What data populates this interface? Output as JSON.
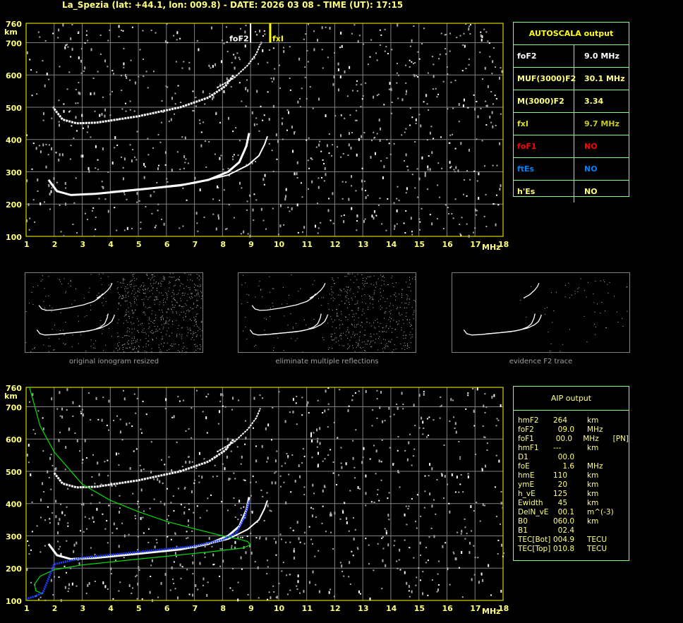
{
  "header": {
    "title": "La_Spezia (lat: +44.1, lon: 009.8) - DATE: 2026 03 08 - TIME (UT): 17:15"
  },
  "chart_data": {
    "type": "scatter",
    "xlim": [
      1,
      18
    ],
    "ylim": [
      100,
      760
    ],
    "x_ticks": [
      "1",
      "2",
      "3",
      "4",
      "5",
      "6",
      "7",
      "8",
      "9",
      "10",
      "11",
      "12",
      "13",
      "14",
      "15",
      "16",
      "17",
      "18"
    ],
    "y_ticks": [
      "100",
      "200",
      "300",
      "400",
      "500",
      "600",
      "700",
      "760"
    ],
    "xlabel": "MHz",
    "ylabel": "km",
    "grid": true,
    "markers": {
      "foF2": {
        "label": "foF2",
        "x": 9.0,
        "color": "#ffffff"
      },
      "fxI": {
        "label": "fxI",
        "x": 9.7,
        "color": "#ffff00"
      }
    },
    "traces": [
      {
        "color": "#ffffff",
        "points": [
          [
            1.8,
            275
          ],
          [
            2.1,
            240
          ],
          [
            2.6,
            228
          ],
          [
            3.5,
            232
          ],
          [
            5,
            245
          ],
          [
            6.5,
            258
          ],
          [
            7.5,
            275
          ],
          [
            8.2,
            300
          ],
          [
            8.6,
            330
          ],
          [
            8.85,
            380
          ],
          [
            8.95,
            420
          ]
        ]
      },
      {
        "color": "#ffffff",
        "points": [
          [
            4,
            238
          ],
          [
            5.5,
            250
          ],
          [
            7,
            265
          ],
          [
            8.2,
            290
          ],
          [
            8.9,
            320
          ],
          [
            9.3,
            350
          ],
          [
            9.5,
            385
          ],
          [
            9.6,
            410
          ]
        ]
      },
      {
        "color": "#ffffff",
        "points": [
          [
            2.0,
            495
          ],
          [
            2.3,
            462
          ],
          [
            2.8,
            450
          ],
          [
            3.5,
            452
          ],
          [
            5,
            472
          ],
          [
            6.5,
            500
          ],
          [
            7.5,
            530
          ],
          [
            8.1,
            565
          ],
          [
            8.4,
            600
          ]
        ]
      },
      {
        "color": "#ffffff",
        "points": [
          [
            7.8,
            560
          ],
          [
            8.4,
            590
          ],
          [
            8.9,
            630
          ],
          [
            9.2,
            665
          ],
          [
            9.35,
            695
          ]
        ]
      }
    ],
    "profile": {
      "green": [
        [
          1.12,
          760
        ],
        [
          1.5,
          640
        ],
        [
          2,
          560
        ],
        [
          3,
          460
        ],
        [
          4,
          410
        ],
        [
          5,
          375
        ],
        [
          6,
          345
        ],
        [
          7,
          322
        ],
        [
          8,
          300
        ],
        [
          8.6,
          290
        ],
        [
          8.9,
          282
        ],
        [
          9,
          272
        ],
        [
          8.7,
          262
        ],
        [
          7.5,
          250
        ],
        [
          5,
          228
        ],
        [
          3,
          210
        ],
        [
          2,
          195
        ],
        [
          1.5,
          175
        ],
        [
          1.3,
          150
        ],
        [
          1.35,
          130
        ],
        [
          1.6,
          120
        ]
      ],
      "blue": [
        [
          1.0,
          105
        ],
        [
          1.3,
          112
        ],
        [
          1.6,
          125
        ],
        [
          2.0,
          212
        ],
        [
          3,
          232
        ],
        [
          5,
          250
        ],
        [
          7,
          268
        ],
        [
          8,
          288
        ],
        [
          8.5,
          310
        ],
        [
          8.8,
          360
        ],
        [
          8.95,
          410
        ]
      ]
    },
    "thumbnails": [
      {
        "caption": "original ionogram resized"
      },
      {
        "caption": "eliminate multiple reflections"
      },
      {
        "caption": "evidence F2 trace"
      }
    ]
  },
  "autoscala": {
    "title": "AUTOSCALA output",
    "rows": [
      {
        "k": "foF2",
        "v": "9.0 MHz",
        "kc": "#ffffff",
        "vc": "#ffffff"
      },
      {
        "k": "MUF(3000)F2",
        "v": "30.1 MHz",
        "kc": "#ffff80",
        "vc": "#ffff80"
      },
      {
        "k": "M(3000)F2",
        "v": "3.34",
        "kc": "#ffff80",
        "vc": "#ffff80"
      },
      {
        "k": "fxI",
        "v": "9.7 MHz",
        "kc": "#e0e020",
        "vc": "#c8c820"
      },
      {
        "k": "foF1",
        "v": "NO",
        "kc": "#ff0000",
        "vc": "#ff0000"
      },
      {
        "k": "ftEs",
        "v": "NO",
        "kc": "#0080ff",
        "vc": "#0080ff"
      },
      {
        "k": "h'Es",
        "v": "NO",
        "kc": "#ffff80",
        "vc": "#ffff80"
      }
    ]
  },
  "aip": {
    "title": "AIP output",
    "rows": [
      [
        "hmF2",
        "264",
        "km",
        ""
      ],
      [
        "foF2",
        "  09.0",
        "MHz",
        ""
      ],
      [
        "foF1",
        "  00.0",
        "MHz",
        "[PN]"
      ],
      [
        "hmF1",
        "---",
        "km",
        ""
      ],
      [
        "D1",
        "  00.0",
        "",
        ""
      ],
      [
        "foE",
        "    1.6",
        "MHz",
        ""
      ],
      [
        "hmE",
        "110",
        "km",
        ""
      ],
      [
        "ymE",
        "  20",
        "km",
        ""
      ],
      [
        "h_vE",
        "125",
        "km",
        ""
      ],
      [
        "Ewidth",
        "  45",
        "km",
        ""
      ],
      [
        "DelN_vE",
        "  00.1",
        "m^(-3)",
        ""
      ],
      [
        "B0",
        "060.0",
        "km",
        ""
      ],
      [
        "B1",
        "  02.4",
        "",
        ""
      ],
      [
        "TEC[Bot]",
        "004.9",
        "TECU",
        ""
      ],
      [
        "TEC[Top]",
        "010.8",
        "TECU",
        ""
      ]
    ]
  }
}
